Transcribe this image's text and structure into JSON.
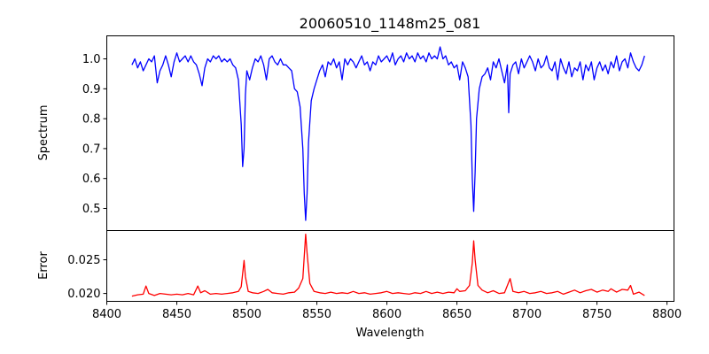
{
  "chart_data": {
    "type": "line",
    "title": "20060510_1148m25_081",
    "xlabel": "Wavelength",
    "xlim": [
      8400,
      8805
    ],
    "xticks": [
      8400,
      8450,
      8500,
      8550,
      8600,
      8650,
      8700,
      8750,
      8800
    ],
    "panels": [
      {
        "name": "spectrum",
        "ylabel": "Spectrum",
        "ylim": [
          0.426,
          1.077
        ],
        "yticks": [
          "0.5",
          "0.6",
          "0.7",
          "0.8",
          "0.9",
          "1.0"
        ],
        "color": "#0000ff",
        "points": [
          [
            8418,
            0.98
          ],
          [
            8420,
            1.0
          ],
          [
            8422,
            0.97
          ],
          [
            8424,
            0.99
          ],
          [
            8426,
            0.96
          ],
          [
            8428,
            0.98
          ],
          [
            8430,
            1.0
          ],
          [
            8432,
            0.99
          ],
          [
            8434,
            1.01
          ],
          [
            8436,
            0.92
          ],
          [
            8438,
            0.96
          ],
          [
            8440,
            0.98
          ],
          [
            8442,
            1.01
          ],
          [
            8444,
            0.98
          ],
          [
            8446,
            0.94
          ],
          [
            8448,
            0.99
          ],
          [
            8450,
            1.02
          ],
          [
            8452,
            0.99
          ],
          [
            8454,
            1.0
          ],
          [
            8456,
            1.01
          ],
          [
            8458,
            0.99
          ],
          [
            8460,
            1.01
          ],
          [
            8462,
            0.99
          ],
          [
            8464,
            0.98
          ],
          [
            8466,
            0.95
          ],
          [
            8468,
            0.91
          ],
          [
            8470,
            0.97
          ],
          [
            8472,
            1.0
          ],
          [
            8474,
            0.99
          ],
          [
            8476,
            1.01
          ],
          [
            8478,
            1.0
          ],
          [
            8480,
            1.01
          ],
          [
            8482,
            0.99
          ],
          [
            8484,
            1.0
          ],
          [
            8486,
            0.99
          ],
          [
            8488,
            1.0
          ],
          [
            8490,
            0.98
          ],
          [
            8492,
            0.97
          ],
          [
            8494,
            0.93
          ],
          [
            8496,
            0.78
          ],
          [
            8497,
            0.64
          ],
          [
            8498,
            0.7
          ],
          [
            8499,
            0.88
          ],
          [
            8500,
            0.96
          ],
          [
            8502,
            0.93
          ],
          [
            8504,
            0.97
          ],
          [
            8506,
            1.0
          ],
          [
            8508,
            0.99
          ],
          [
            8510,
            1.01
          ],
          [
            8512,
            0.98
          ],
          [
            8514,
            0.93
          ],
          [
            8516,
            1.0
          ],
          [
            8518,
            1.01
          ],
          [
            8520,
            0.99
          ],
          [
            8522,
            0.98
          ],
          [
            8524,
            1.0
          ],
          [
            8526,
            0.98
          ],
          [
            8528,
            0.98
          ],
          [
            8530,
            0.97
          ],
          [
            8532,
            0.96
          ],
          [
            8534,
            0.9
          ],
          [
            8536,
            0.89
          ],
          [
            8538,
            0.84
          ],
          [
            8540,
            0.7
          ],
          [
            8541,
            0.55
          ],
          [
            8542,
            0.46
          ],
          [
            8543,
            0.55
          ],
          [
            8544,
            0.72
          ],
          [
            8546,
            0.86
          ],
          [
            8548,
            0.9
          ],
          [
            8550,
            0.93
          ],
          [
            8552,
            0.96
          ],
          [
            8554,
            0.98
          ],
          [
            8556,
            0.94
          ],
          [
            8558,
            0.99
          ],
          [
            8560,
            0.98
          ],
          [
            8562,
            1.0
          ],
          [
            8564,
            0.97
          ],
          [
            8566,
            0.99
          ],
          [
            8568,
            0.93
          ],
          [
            8570,
            1.0
          ],
          [
            8572,
            0.98
          ],
          [
            8574,
            1.0
          ],
          [
            8576,
            0.99
          ],
          [
            8578,
            0.97
          ],
          [
            8580,
            0.99
          ],
          [
            8582,
            1.01
          ],
          [
            8584,
            0.98
          ],
          [
            8586,
            0.99
          ],
          [
            8588,
            0.96
          ],
          [
            8590,
            0.99
          ],
          [
            8592,
            0.98
          ],
          [
            8594,
            1.01
          ],
          [
            8596,
            0.99
          ],
          [
            8598,
            1.0
          ],
          [
            8600,
            1.01
          ],
          [
            8602,
            0.99
          ],
          [
            8604,
            1.02
          ],
          [
            8606,
            0.98
          ],
          [
            8608,
            1.0
          ],
          [
            8610,
            1.01
          ],
          [
            8612,
            0.99
          ],
          [
            8614,
            1.02
          ],
          [
            8616,
            1.0
          ],
          [
            8618,
            1.01
          ],
          [
            8620,
            0.99
          ],
          [
            8622,
            1.02
          ],
          [
            8624,
            1.0
          ],
          [
            8626,
            1.01
          ],
          [
            8628,
            0.99
          ],
          [
            8630,
            1.02
          ],
          [
            8632,
            1.0
          ],
          [
            8634,
            1.01
          ],
          [
            8636,
            1.0
          ],
          [
            8638,
            1.04
          ],
          [
            8640,
            1.0
          ],
          [
            8642,
            1.01
          ],
          [
            8644,
            0.98
          ],
          [
            8646,
            0.99
          ],
          [
            8648,
            0.97
          ],
          [
            8650,
            0.98
          ],
          [
            8652,
            0.93
          ],
          [
            8654,
            0.99
          ],
          [
            8656,
            0.97
          ],
          [
            8658,
            0.94
          ],
          [
            8660,
            0.78
          ],
          [
            8661,
            0.6
          ],
          [
            8662,
            0.49
          ],
          [
            8663,
            0.62
          ],
          [
            8664,
            0.8
          ],
          [
            8666,
            0.9
          ],
          [
            8668,
            0.94
          ],
          [
            8670,
            0.95
          ],
          [
            8672,
            0.97
          ],
          [
            8674,
            0.93
          ],
          [
            8676,
            0.99
          ],
          [
            8678,
            0.97
          ],
          [
            8680,
            1.0
          ],
          [
            8682,
            0.96
          ],
          [
            8684,
            0.92
          ],
          [
            8686,
            0.98
          ],
          [
            8687,
            0.82
          ],
          [
            8688,
            0.95
          ],
          [
            8690,
            0.98
          ],
          [
            8692,
            0.99
          ],
          [
            8694,
            0.95
          ],
          [
            8696,
            1.0
          ],
          [
            8698,
            0.97
          ],
          [
            8700,
            0.99
          ],
          [
            8702,
            1.01
          ],
          [
            8704,
            0.99
          ],
          [
            8706,
            0.96
          ],
          [
            8708,
            1.0
          ],
          [
            8710,
            0.97
          ],
          [
            8712,
            0.98
          ],
          [
            8714,
            1.01
          ],
          [
            8716,
            0.97
          ],
          [
            8718,
            0.96
          ],
          [
            8720,
            0.99
          ],
          [
            8722,
            0.93
          ],
          [
            8724,
            1.0
          ],
          [
            8726,
            0.97
          ],
          [
            8728,
            0.95
          ],
          [
            8730,
            0.99
          ],
          [
            8732,
            0.94
          ],
          [
            8734,
            0.97
          ],
          [
            8736,
            0.96
          ],
          [
            8738,
            0.99
          ],
          [
            8740,
            0.93
          ],
          [
            8742,
            0.98
          ],
          [
            8744,
            0.96
          ],
          [
            8746,
            0.99
          ],
          [
            8748,
            0.93
          ],
          [
            8750,
            0.97
          ],
          [
            8752,
            0.99
          ],
          [
            8754,
            0.96
          ],
          [
            8756,
            0.98
          ],
          [
            8758,
            0.95
          ],
          [
            8760,
            0.99
          ],
          [
            8762,
            0.97
          ],
          [
            8764,
            1.01
          ],
          [
            8766,
            0.96
          ],
          [
            8768,
            0.99
          ],
          [
            8770,
            1.0
          ],
          [
            8772,
            0.97
          ],
          [
            8774,
            1.02
          ],
          [
            8776,
            0.99
          ],
          [
            8778,
            0.97
          ],
          [
            8780,
            0.96
          ],
          [
            8782,
            0.98
          ],
          [
            8784,
            1.01
          ]
        ]
      },
      {
        "name": "error",
        "ylabel": "Error",
        "ylim": [
          0.01883,
          0.02934
        ],
        "yticks": [
          "0.020",
          "0.025"
        ],
        "color": "#ff0000",
        "points": [
          [
            8418,
            0.0196
          ],
          [
            8422,
            0.0198
          ],
          [
            8426,
            0.0199
          ],
          [
            8428,
            0.0211
          ],
          [
            8430,
            0.02
          ],
          [
            8434,
            0.0197
          ],
          [
            8438,
            0.02
          ],
          [
            8442,
            0.0199
          ],
          [
            8446,
            0.0198
          ],
          [
            8450,
            0.0199
          ],
          [
            8454,
            0.0198
          ],
          [
            8458,
            0.02
          ],
          [
            8462,
            0.0198
          ],
          [
            8465,
            0.0211
          ],
          [
            8467,
            0.0201
          ],
          [
            8470,
            0.0204
          ],
          [
            8474,
            0.0199
          ],
          [
            8478,
            0.02
          ],
          [
            8482,
            0.0199
          ],
          [
            8486,
            0.02
          ],
          [
            8490,
            0.0201
          ],
          [
            8494,
            0.0203
          ],
          [
            8496,
            0.021
          ],
          [
            8498,
            0.0249
          ],
          [
            8499,
            0.0225
          ],
          [
            8501,
            0.0203
          ],
          [
            8504,
            0.0201
          ],
          [
            8508,
            0.02
          ],
          [
            8512,
            0.0203
          ],
          [
            8515,
            0.0206
          ],
          [
            8518,
            0.0201
          ],
          [
            8522,
            0.02
          ],
          [
            8526,
            0.0199
          ],
          [
            8530,
            0.0201
          ],
          [
            8534,
            0.0202
          ],
          [
            8537,
            0.0208
          ],
          [
            8540,
            0.0222
          ],
          [
            8542,
            0.0288
          ],
          [
            8543,
            0.026
          ],
          [
            8545,
            0.0215
          ],
          [
            8548,
            0.0203
          ],
          [
            8552,
            0.0201
          ],
          [
            8556,
            0.02
          ],
          [
            8560,
            0.0202
          ],
          [
            8564,
            0.02
          ],
          [
            8568,
            0.0201
          ],
          [
            8572,
            0.02
          ],
          [
            8576,
            0.0203
          ],
          [
            8580,
            0.02
          ],
          [
            8584,
            0.0201
          ],
          [
            8588,
            0.0199
          ],
          [
            8592,
            0.02
          ],
          [
            8596,
            0.0201
          ],
          [
            8600,
            0.0203
          ],
          [
            8604,
            0.02
          ],
          [
            8608,
            0.0201
          ],
          [
            8612,
            0.02
          ],
          [
            8616,
            0.0199
          ],
          [
            8620,
            0.0201
          ],
          [
            8624,
            0.02
          ],
          [
            8628,
            0.0203
          ],
          [
            8632,
            0.02
          ],
          [
            8636,
            0.0202
          ],
          [
            8640,
            0.02
          ],
          [
            8644,
            0.0202
          ],
          [
            8648,
            0.0201
          ],
          [
            8650,
            0.0207
          ],
          [
            8652,
            0.0203
          ],
          [
            8656,
            0.0204
          ],
          [
            8659,
            0.0212
          ],
          [
            8661,
            0.0245
          ],
          [
            8662,
            0.0278
          ],
          [
            8663,
            0.025
          ],
          [
            8665,
            0.0212
          ],
          [
            8668,
            0.0205
          ],
          [
            8672,
            0.0201
          ],
          [
            8676,
            0.0204
          ],
          [
            8680,
            0.02
          ],
          [
            8684,
            0.0201
          ],
          [
            8688,
            0.0222
          ],
          [
            8690,
            0.0203
          ],
          [
            8694,
            0.0201
          ],
          [
            8698,
            0.0203
          ],
          [
            8702,
            0.02
          ],
          [
            8706,
            0.0201
          ],
          [
            8710,
            0.0203
          ],
          [
            8714,
            0.02
          ],
          [
            8718,
            0.0201
          ],
          [
            8722,
            0.0203
          ],
          [
            8726,
            0.0199
          ],
          [
            8730,
            0.0202
          ],
          [
            8734,
            0.0205
          ],
          [
            8738,
            0.0201
          ],
          [
            8742,
            0.0204
          ],
          [
            8746,
            0.0206
          ],
          [
            8750,
            0.0202
          ],
          [
            8754,
            0.0205
          ],
          [
            8758,
            0.0203
          ],
          [
            8760,
            0.0207
          ],
          [
            8764,
            0.0202
          ],
          [
            8768,
            0.0206
          ],
          [
            8772,
            0.0205
          ],
          [
            8774,
            0.0212
          ],
          [
            8776,
            0.0199
          ],
          [
            8780,
            0.0202
          ],
          [
            8784,
            0.0197
          ]
        ]
      }
    ]
  }
}
